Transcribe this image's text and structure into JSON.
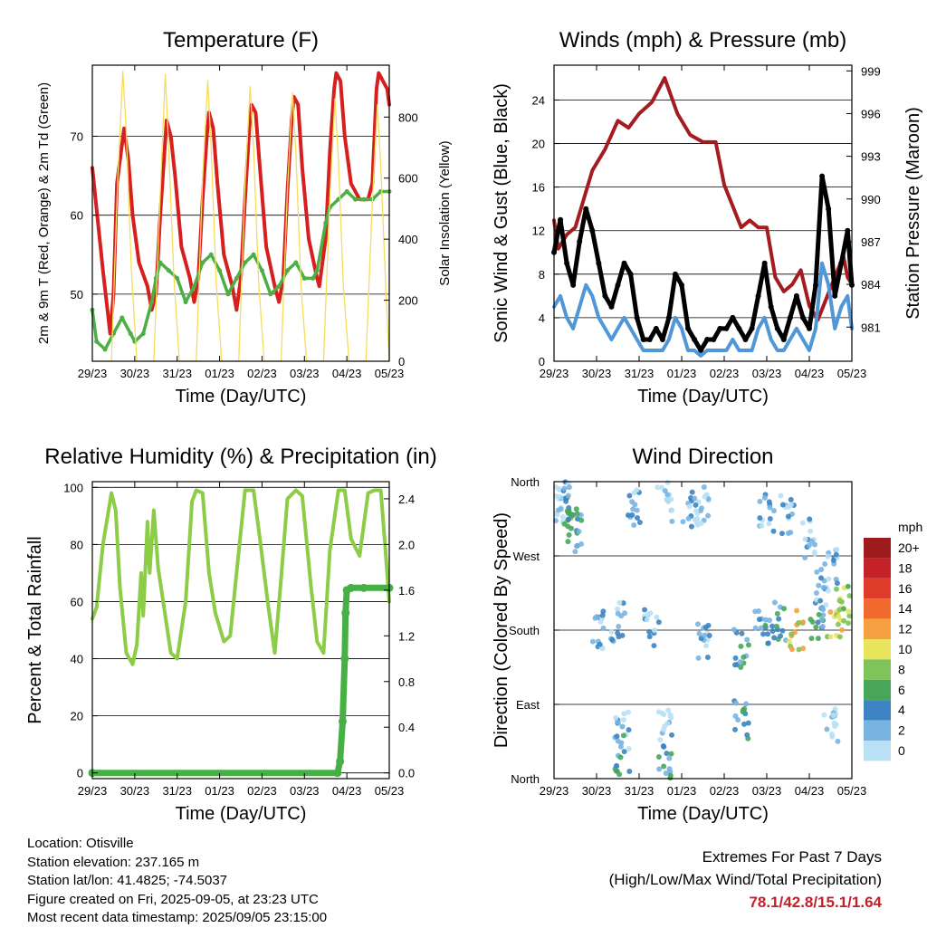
{
  "time_ticks": [
    "29/23",
    "30/23",
    "31/23",
    "01/23",
    "02/23",
    "03/23",
    "04/23",
    "05/23"
  ],
  "colors": {
    "temp2m": "#d62020",
    "temp9m": "#f07020",
    "dewpoint": "#4caf44",
    "solar": "#f7dc5c",
    "wind": "#4f97d6",
    "gust": "#000000",
    "pressure": "#a51c20",
    "rh": "#8ccc46",
    "precip": "#47b045"
  },
  "chart_data": [
    {
      "id": "temperature",
      "type": "line",
      "title": "Temperature (F)",
      "xlabel": "Time (Day/UTC)",
      "ylabel": "2m & 9m T (Red, Orange) & 2m Td (Green)",
      "y2label": "Solar Insolation (Yellow)",
      "xlim": [
        0,
        7
      ],
      "ylim": [
        41.5,
        79
      ],
      "y2lim": [
        0,
        970
      ],
      "yticks": [
        50,
        60,
        70
      ],
      "y2ticks": [
        0,
        200,
        400,
        600,
        800
      ],
      "grid": true,
      "series": [
        {
          "key": "temp2m",
          "x": [
            0,
            0.25,
            0.42,
            0.5,
            0.58,
            0.75,
            0.85,
            0.95,
            1.1,
            1.3,
            1.4,
            1.5,
            1.6,
            1.7,
            1.75,
            1.85,
            1.95,
            2.1,
            2.3,
            2.4,
            2.5,
            2.6,
            2.7,
            2.75,
            2.85,
            2.95,
            3.1,
            3.3,
            3.4,
            3.5,
            3.6,
            3.7,
            3.75,
            3.85,
            3.95,
            4.1,
            4.3,
            4.4,
            4.5,
            4.6,
            4.7,
            4.75,
            4.85,
            4.95,
            5.1,
            5.3,
            5.35,
            5.5,
            5.6,
            5.7,
            5.75,
            5.85,
            5.95,
            6.1,
            6.3,
            6.4,
            6.5,
            6.6,
            6.7,
            6.75,
            6.85,
            6.95,
            7.0
          ],
          "y": [
            66,
            53,
            45,
            50,
            64,
            71,
            67,
            60,
            54,
            51,
            48,
            50,
            60,
            68,
            72,
            70,
            65,
            56,
            52,
            49,
            52,
            62,
            70,
            73,
            71,
            64,
            55,
            51,
            48,
            52,
            62,
            71,
            74,
            73,
            66,
            56,
            51,
            49,
            52,
            63,
            72,
            75,
            74,
            66,
            57,
            52,
            51,
            57,
            68,
            76,
            78,
            77,
            70,
            64,
            62,
            62,
            62,
            64,
            76,
            78,
            77,
            76,
            74
          ]
        },
        {
          "key": "dewpoint",
          "x": [
            0,
            0.1,
            0.3,
            0.5,
            0.7,
            0.9,
            1.0,
            1.2,
            1.4,
            1.5,
            1.6,
            1.8,
            2.0,
            2.2,
            2.4,
            2.6,
            2.8,
            3.0,
            3.2,
            3.4,
            3.6,
            3.8,
            4.0,
            4.2,
            4.4,
            4.6,
            4.8,
            5.0,
            5.2,
            5.3,
            5.5,
            5.6,
            5.8,
            6.0,
            6.2,
            6.4,
            6.6,
            6.8,
            7.0
          ],
          "y": [
            48,
            44,
            43,
            45,
            47,
            45,
            44,
            45,
            49,
            52,
            54,
            53,
            52,
            49,
            51,
            54,
            55,
            53,
            50,
            52,
            54,
            55,
            53,
            50,
            51,
            53,
            54,
            52,
            52,
            53,
            59,
            61,
            62,
            63,
            62,
            62,
            62,
            63,
            63
          ]
        },
        {
          "key": "solar",
          "x": [
            0,
            0.45,
            0.6,
            0.72,
            0.8,
            0.92,
            1.05,
            1.45,
            1.6,
            1.72,
            1.8,
            1.92,
            2.05,
            2.45,
            2.6,
            2.72,
            2.8,
            2.92,
            3.05,
            3.45,
            3.6,
            3.72,
            3.8,
            3.92,
            4.05,
            4.45,
            4.6,
            4.72,
            4.8,
            4.92,
            5.05,
            5.45,
            5.6,
            5.72,
            5.8,
            5.92,
            6.05,
            6.45,
            6.6,
            6.72,
            6.8,
            6.92,
            7.0
          ],
          "y": [
            0,
            0,
            600,
            950,
            750,
            300,
            0,
            0,
            550,
            940,
            700,
            280,
            0,
            0,
            600,
            920,
            700,
            260,
            0,
            0,
            580,
            900,
            700,
            260,
            0,
            0,
            560,
            880,
            680,
            250,
            0,
            0,
            540,
            860,
            660,
            240,
            0,
            0,
            520,
            840,
            640,
            230,
            0
          ]
        }
      ]
    },
    {
      "id": "winds",
      "type": "line",
      "title": "Winds (mph) & Pressure (mb)",
      "xlabel": "Time (Day/UTC)",
      "ylabel": "Sonic Wind & Gust (Blue, Black)",
      "y2label": "Station Pressure (Maroon)",
      "xlim": [
        0,
        7
      ],
      "ylim": [
        0,
        27.2
      ],
      "y2lim": [
        978.6,
        999.4
      ],
      "yticks": [
        0,
        4,
        8,
        12,
        16,
        20,
        24
      ],
      "y2ticks": [
        981,
        984,
        987,
        990,
        993,
        996,
        999
      ],
      "grid": true,
      "series": [
        {
          "key": "pressure",
          "x": [
            0,
            0.1,
            0.3,
            0.5,
            0.7,
            0.9,
            1.2,
            1.5,
            1.75,
            2.0,
            2.3,
            2.6,
            2.9,
            3.2,
            3.5,
            3.8,
            4.0,
            4.2,
            4.4,
            4.6,
            4.8,
            5.0,
            5.2,
            5.4,
            5.6,
            5.8,
            6.0,
            6.2,
            6.4,
            6.6,
            6.8,
            6.9,
            7.0
          ],
          "y": [
            988.5,
            986.5,
            987.5,
            988.0,
            990.0,
            992.0,
            993.5,
            995.5,
            995.0,
            996.0,
            996.8,
            998.5,
            996.0,
            994.5,
            994.0,
            994.0,
            991.0,
            989.5,
            988.0,
            988.5,
            988.0,
            988.0,
            984.5,
            983.5,
            984.0,
            985.0,
            982.5,
            981.5,
            983.0,
            984.5,
            986.0,
            984.5,
            984.0
          ]
        },
        {
          "key": "gust",
          "x": [
            0,
            0.15,
            0.3,
            0.45,
            0.6,
            0.75,
            0.9,
            1.05,
            1.2,
            1.35,
            1.5,
            1.65,
            1.8,
            1.95,
            2.1,
            2.25,
            2.4,
            2.55,
            2.7,
            2.85,
            3.0,
            3.15,
            3.3,
            3.45,
            3.6,
            3.75,
            3.9,
            4.05,
            4.2,
            4.35,
            4.5,
            4.65,
            4.8,
            4.95,
            5.1,
            5.25,
            5.4,
            5.55,
            5.7,
            5.85,
            6.0,
            6.15,
            6.3,
            6.45,
            6.6,
            6.75,
            6.9,
            7.0
          ],
          "y": [
            10,
            13,
            9,
            7,
            11,
            14,
            12,
            9,
            6,
            5,
            7,
            9,
            8,
            4,
            2,
            2,
            3,
            2,
            4,
            8,
            7,
            3,
            2,
            1,
            2,
            2,
            3,
            3,
            4,
            3,
            2,
            3,
            6,
            9,
            5,
            3,
            2,
            4,
            6,
            4,
            3,
            7,
            17,
            14,
            6,
            9,
            12,
            7
          ]
        },
        {
          "key": "wind",
          "x": [
            0,
            0.15,
            0.3,
            0.45,
            0.6,
            0.75,
            0.9,
            1.05,
            1.2,
            1.35,
            1.5,
            1.65,
            1.8,
            1.95,
            2.1,
            2.25,
            2.4,
            2.55,
            2.7,
            2.85,
            3.0,
            3.15,
            3.3,
            3.45,
            3.6,
            3.75,
            3.9,
            4.05,
            4.2,
            4.35,
            4.5,
            4.65,
            4.8,
            4.95,
            5.1,
            5.25,
            5.4,
            5.55,
            5.7,
            5.85,
            6.0,
            6.15,
            6.3,
            6.45,
            6.6,
            6.75,
            6.9,
            7.0
          ],
          "y": [
            5,
            6,
            4,
            3,
            5,
            7,
            6,
            4,
            3,
            2,
            3,
            4,
            3,
            2,
            1,
            1,
            1,
            1,
            2,
            4,
            3,
            1,
            1,
            0.5,
            1,
            1,
            1,
            1,
            2,
            1,
            1,
            1,
            3,
            4,
            2,
            1,
            1,
            2,
            3,
            2,
            1,
            3,
            9,
            7,
            3,
            5,
            6,
            3
          ]
        }
      ]
    },
    {
      "id": "humidity",
      "type": "line",
      "title": "Relative Humidity (%) & Precipitation (in)",
      "xlabel": "Time (Day/UTC)",
      "ylabel": "Percent & Total Rainfall",
      "xlim": [
        0,
        7
      ],
      "ylim": [
        -2,
        102
      ],
      "y2lim": [
        -0.05,
        2.55
      ],
      "yticks": [
        0,
        20,
        40,
        60,
        80,
        100
      ],
      "y2ticks": [
        0.0,
        0.4,
        0.8,
        1.2,
        1.6,
        2.0,
        2.4
      ],
      "grid": true,
      "series": [
        {
          "key": "rh",
          "x": [
            0,
            0.1,
            0.25,
            0.45,
            0.55,
            0.65,
            0.8,
            0.95,
            1.05,
            1.15,
            1.2,
            1.3,
            1.35,
            1.45,
            1.55,
            1.65,
            1.85,
            2.0,
            2.2,
            2.35,
            2.45,
            2.6,
            2.75,
            2.9,
            3.1,
            3.25,
            3.4,
            3.6,
            3.8,
            3.95,
            4.15,
            4.3,
            4.45,
            4.6,
            4.8,
            4.95,
            5.15,
            5.3,
            5.45,
            5.6,
            5.8,
            5.95,
            6.1,
            6.3,
            6.5,
            6.65,
            6.8,
            6.9,
            7.0
          ],
          "y": [
            54,
            58,
            80,
            98,
            92,
            65,
            42,
            38,
            45,
            70,
            55,
            88,
            70,
            92,
            72,
            62,
            42,
            40,
            60,
            95,
            99,
            98,
            70,
            56,
            46,
            48,
            70,
            99,
            99,
            82,
            58,
            42,
            68,
            96,
            99,
            97,
            66,
            46,
            42,
            78,
            99,
            99,
            82,
            76,
            98,
            99,
            99,
            80,
            60
          ]
        },
        {
          "key": "precip",
          "x": [
            0,
            5.78,
            5.84,
            5.9,
            5.95,
            5.97,
            6.0,
            6.1,
            6.4,
            7.0
          ],
          "y": [
            0,
            0,
            0.1,
            0.45,
            1.0,
            1.4,
            1.6,
            1.62,
            1.62,
            1.62
          ]
        }
      ]
    },
    {
      "id": "direction",
      "type": "scatter",
      "title": "Wind Direction",
      "xlabel": "Time (Day/UTC)",
      "ylabel": "Direction (Colored By Speed)",
      "xlim": [
        0,
        7
      ],
      "ylim": [
        0,
        360
      ],
      "yticks": [
        "North",
        "East",
        "South",
        "West",
        "North"
      ],
      "grid": true,
      "legend_title": "mph",
      "legend_labels": [
        "20+",
        "18",
        "16",
        "14",
        "12",
        "10",
        "8",
        "6",
        "4",
        "2",
        "0"
      ],
      "legend_colors": [
        "#9e1b1e",
        "#c52227",
        "#e03c2b",
        "#f06a2d",
        "#f7a041",
        "#e8e45c",
        "#7fc35b",
        "#48a65b",
        "#3c84c2",
        "#78b4e2",
        "#b9e0f5"
      ]
    }
  ],
  "info": {
    "location": "Location: Otisville",
    "elevation": "Station elevation: 237.165 m",
    "latlon": "Station lat/lon: 41.4825; -74.5037",
    "created": "Figure created on Fri, 2025-09-05, at 23:23 UTC",
    "recent": "Most recent data timestamp: 2025/09/05 23:15:00"
  },
  "extremes": {
    "title": "Extremes For Past 7 Days",
    "subtitle": "(High/Low/Max Wind/Total Precipitation)",
    "values": "78.1/42.8/15.1/1.64"
  }
}
